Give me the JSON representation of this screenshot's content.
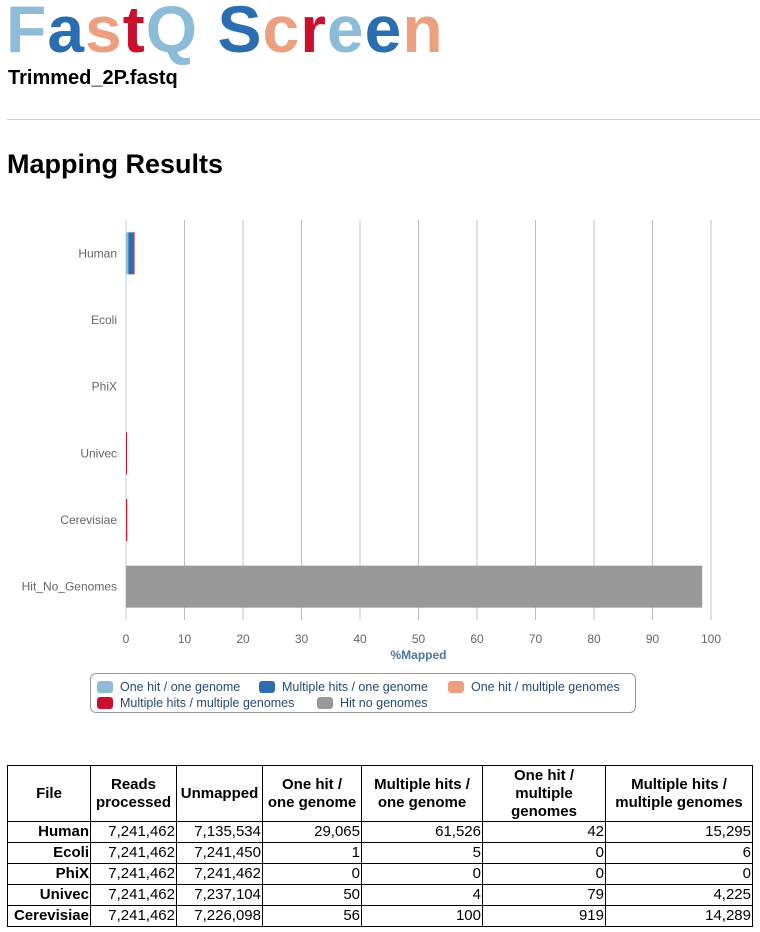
{
  "header": {
    "logo_letters": [
      {
        "ch": "F",
        "color": "#8dbcd9"
      },
      {
        "ch": "a",
        "color": "#2a6db0"
      },
      {
        "ch": "s",
        "color": "#eda080"
      },
      {
        "ch": "t",
        "color": "#c9102e"
      },
      {
        "ch": "Q",
        "color": "#8dbcd9"
      },
      {
        "ch": " ",
        "color": "#000000"
      },
      {
        "ch": "S",
        "color": "#2a6db0"
      },
      {
        "ch": "c",
        "color": "#eda080"
      },
      {
        "ch": "r",
        "color": "#c9102e"
      },
      {
        "ch": "e",
        "color": "#8dbcd9"
      },
      {
        "ch": "e",
        "color": "#2a6db0"
      },
      {
        "ch": "n",
        "color": "#eda080"
      }
    ],
    "file_name": "Trimmed_2P.fastq"
  },
  "section_title": "Mapping Results",
  "chart_data": {
    "type": "bar",
    "orientation": "horizontal",
    "stacked": true,
    "categories": [
      "Human",
      "Ecoli",
      "PhiX",
      "Univec",
      "Cerevisiae",
      "Hit_No_Genomes"
    ],
    "xlabel": "%Mapped",
    "xlim": [
      0,
      100
    ],
    "xticks": [
      0,
      10,
      20,
      30,
      40,
      50,
      60,
      70,
      80,
      90,
      100
    ],
    "grid": true,
    "legend_position": "bottom",
    "series": [
      {
        "name": "One hit / one genome",
        "color": "#8dbcd9",
        "values": [
          0.4,
          0,
          0,
          0,
          0,
          0
        ]
      },
      {
        "name": "Multiple hits / one genome",
        "color": "#2a6db0",
        "values": [
          0.85,
          0,
          0,
          0,
          0,
          0
        ]
      },
      {
        "name": "One hit / multiple genomes",
        "color": "#eda080",
        "values": [
          0,
          0,
          0,
          0,
          0.01,
          0
        ]
      },
      {
        "name": "Multiple hits / multiple genomes",
        "color": "#c9102e",
        "values": [
          0.21,
          0,
          0,
          0.06,
          0.2,
          0
        ]
      },
      {
        "name": "Hit no genomes",
        "color": "#999999",
        "values": [
          0,
          0,
          0,
          0,
          0,
          98.5
        ]
      }
    ]
  },
  "table": {
    "headers": [
      "File",
      "Reads processed",
      "Unmapped",
      "One hit / one genome",
      "Multiple hits / one genome",
      "One hit / multiple genomes",
      "Multiple hits / multiple genomes"
    ],
    "rows": [
      [
        "Human",
        "7,241,462",
        "7,135,534",
        "29,065",
        "61,526",
        "42",
        "15,295"
      ],
      [
        "Ecoli",
        "7,241,462",
        "7,241,450",
        "1",
        "5",
        "0",
        "6"
      ],
      [
        "PhiX",
        "7,241,462",
        "7,241,462",
        "0",
        "0",
        "0",
        "0"
      ],
      [
        "Univec",
        "7,241,462",
        "7,237,104",
        "50",
        "4",
        "79",
        "4,225"
      ],
      [
        "Cerevisiae",
        "7,241,462",
        "7,226,098",
        "56",
        "100",
        "919",
        "14,289"
      ]
    ]
  }
}
